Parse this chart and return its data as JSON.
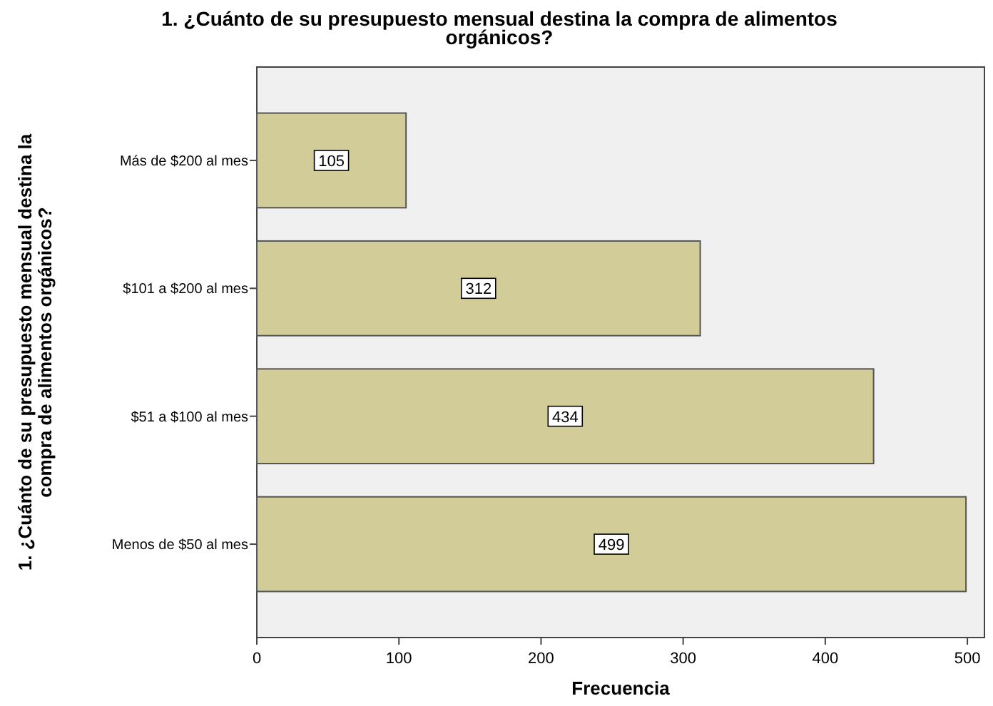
{
  "chart_data": {
    "type": "bar",
    "orientation": "horizontal",
    "title": "1. ¿Cuánto de su presupuesto mensual destina la compra de alimentos orgánicos?",
    "xlabel": "Frecuencia",
    "ylabel": "1. ¿Cuánto de su presupuesto mensual destina la compra de alimentos orgánicos?",
    "categories": [
      "Más de $200 al mes",
      "$101 a $200 al mes",
      "$51 a $100 al mes",
      "Menos de $50 al mes"
    ],
    "values": [
      105,
      312,
      434,
      499
    ],
    "color": "#d2cc98",
    "data_labels": true,
    "xlim": [
      0,
      512
    ],
    "xticks": [
      0,
      100,
      200,
      300,
      400,
      500
    ],
    "grid": false
  }
}
